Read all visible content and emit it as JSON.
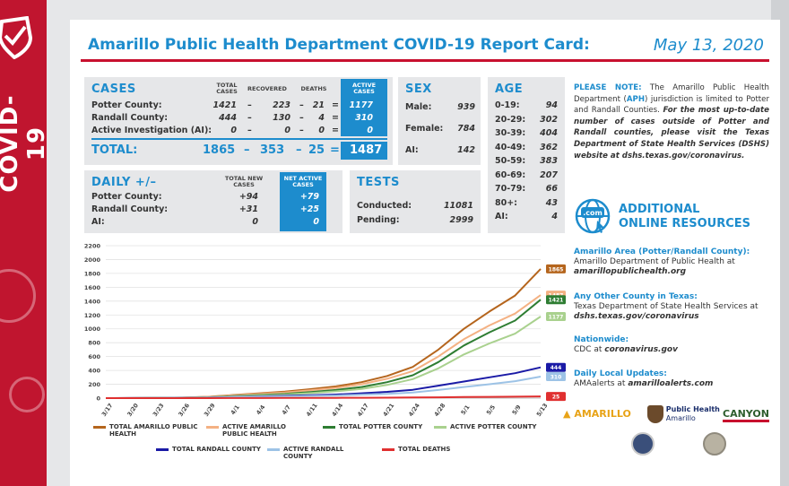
{
  "banner": {
    "vertical_text": "COVID-19"
  },
  "header": {
    "title": "Amarillo Public Health Department COVID-19 Report Card:",
    "date": "May 13, 2020"
  },
  "cases": {
    "heading": "CASES",
    "col_total": "TOTAL CASES",
    "col_recovered": "RECOVERED",
    "col_deaths": "DEATHS",
    "col_active": "ACTIVE CASES",
    "rows": [
      {
        "label": "Potter County:",
        "total": "1421",
        "recovered": "223",
        "deaths": "21",
        "active": "1177"
      },
      {
        "label": "Randall County:",
        "total": "444",
        "recovered": "130",
        "deaths": "4",
        "active": "310"
      },
      {
        "label": "Active Investigation (AI):",
        "total": "0",
        "recovered": "0",
        "deaths": "0",
        "active": "0"
      }
    ],
    "total_label": "TOTAL:",
    "total": "1865",
    "total_recovered": "353",
    "total_deaths": "25",
    "total_active": "1487"
  },
  "daily": {
    "heading": "DAILY +/–",
    "col_new": "TOTAL NEW CASES",
    "col_active": "NET ACTIVE CASES",
    "rows": [
      {
        "label": "Potter County:",
        "new": "+94",
        "active": "+79"
      },
      {
        "label": "Randall County:",
        "new": "+31",
        "active": "+25"
      },
      {
        "label": "AI:",
        "new": "0",
        "active": "0"
      }
    ]
  },
  "sex": {
    "heading": "SEX",
    "rows": [
      {
        "label": "Male:",
        "value": "939"
      },
      {
        "label": "Female:",
        "value": "784"
      },
      {
        "label": "AI:",
        "value": "142"
      }
    ]
  },
  "tests": {
    "heading": "TESTS",
    "rows": [
      {
        "label": "Conducted:",
        "value": "11081"
      },
      {
        "label": "Pending:",
        "value": "2999"
      }
    ]
  },
  "age": {
    "heading": "AGE",
    "rows": [
      {
        "label": "0-19:",
        "value": "94"
      },
      {
        "label": "20-29:",
        "value": "302"
      },
      {
        "label": "30-39:",
        "value": "404"
      },
      {
        "label": "40-49:",
        "value": "362"
      },
      {
        "label": "50-59:",
        "value": "383"
      },
      {
        "label": "60-69:",
        "value": "207"
      },
      {
        "label": "70-79:",
        "value": "66"
      },
      {
        "label": "80+:",
        "value": "43"
      },
      {
        "label": "AI:",
        "value": "4"
      }
    ]
  },
  "note": {
    "lead": "PLEASE NOTE:",
    "text1": " The Amarillo Public Health Department (",
    "aph": "APH",
    "text2": ") jurisdiction is limited to Potter and Randall Counties. ",
    "italic": "For the most up-to-date number of cases outside of Potter and Randall counties, please visit the Texas Department of State Health Services (DSHS) website at dshs.texas.gov/coronavirus."
  },
  "resources": {
    "heading_line1": "ADDITIONAL",
    "heading_line2": "ONLINE RESOURCES",
    "globe_label": ".com",
    "items": [
      {
        "head": "Amarillo Area (Potter/Randall County):",
        "line": "Amarillo Department of Public Health at",
        "link": "amarillopublichealth.org"
      },
      {
        "head": "Any Other County in Texas:",
        "line": "Texas Department of State Health Services at",
        "link": "dshs.texas.gov/coronavirus"
      },
      {
        "head": "Nationwide:",
        "line": "CDC at",
        "link": "coronavirus.gov"
      },
      {
        "head": "Daily Local Updates:",
        "line": "AMAalerts at",
        "link": "amarilloalerts.com"
      }
    ]
  },
  "logos": {
    "amarillo": "AMARILLO",
    "public_health_line1": "Public Health",
    "public_health_line2": "Amarillo",
    "canyon": "CANYON"
  },
  "chart_data": {
    "type": "line",
    "title": "",
    "xlabel": "",
    "ylabel": "",
    "ylim": [
      0,
      2200
    ],
    "yticks": [
      0,
      200,
      400,
      600,
      800,
      1000,
      1200,
      1400,
      1600,
      1800,
      2000,
      2200
    ],
    "xticks": [
      "3/17",
      "3/20",
      "3/23",
      "3/26",
      "3/29",
      "4/1",
      "4/4",
      "4/7",
      "4/11",
      "4/14",
      "4/17",
      "4/21",
      "4/24",
      "4/28",
      "5/1",
      "5/5",
      "5/9",
      "5/13"
    ],
    "grid": true,
    "series": [
      {
        "name": "TOTAL AMARILLO PUBLIC HEALTH",
        "color": "#b5651d",
        "end_label": "1865",
        "values": [
          0,
          1,
          3,
          8,
          20,
          45,
          70,
          95,
          130,
          170,
          230,
          320,
          450,
          700,
          1000,
          1250,
          1480,
          1865
        ]
      },
      {
        "name": "ACTIVE AMARILLO PUBLIC HEALTH",
        "color": "#f4b183",
        "end_label": "1487",
        "values": [
          0,
          1,
          3,
          7,
          18,
          40,
          62,
          82,
          112,
          148,
          200,
          280,
          390,
          600,
          850,
          1050,
          1220,
          1487
        ]
      },
      {
        "name": "TOTAL POTTER COUNTY",
        "color": "#2e7d32",
        "end_label": "1421",
        "values": [
          0,
          0,
          2,
          5,
          12,
          28,
          45,
          62,
          88,
          118,
          160,
          230,
          330,
          520,
          760,
          950,
          1120,
          1421
        ]
      },
      {
        "name": "ACTIVE POTTER COUNTY",
        "color": "#a9d18e",
        "end_label": "1177",
        "values": [
          0,
          0,
          2,
          4,
          10,
          24,
          38,
          52,
          72,
          98,
          132,
          190,
          275,
          430,
          630,
          790,
          930,
          1177
        ]
      },
      {
        "name": "TOTAL RANDALL COUNTY",
        "color": "#1a1aa6",
        "end_label": "444",
        "values": [
          0,
          1,
          1,
          3,
          8,
          17,
          25,
          33,
          42,
          52,
          70,
          90,
          120,
          180,
          240,
          300,
          360,
          444
        ]
      },
      {
        "name": "ACTIVE RANDALL COUNTY",
        "color": "#9dc3e6",
        "end_label": "310",
        "values": [
          0,
          1,
          1,
          3,
          7,
          14,
          20,
          26,
          32,
          38,
          50,
          62,
          80,
          118,
          160,
          200,
          245,
          310
        ]
      },
      {
        "name": "TOTAL DEATHS",
        "color": "#e03030",
        "end_label": "25",
        "values": [
          0,
          0,
          0,
          0,
          0,
          1,
          1,
          2,
          3,
          4,
          5,
          7,
          9,
          12,
          15,
          18,
          21,
          25
        ]
      }
    ]
  }
}
